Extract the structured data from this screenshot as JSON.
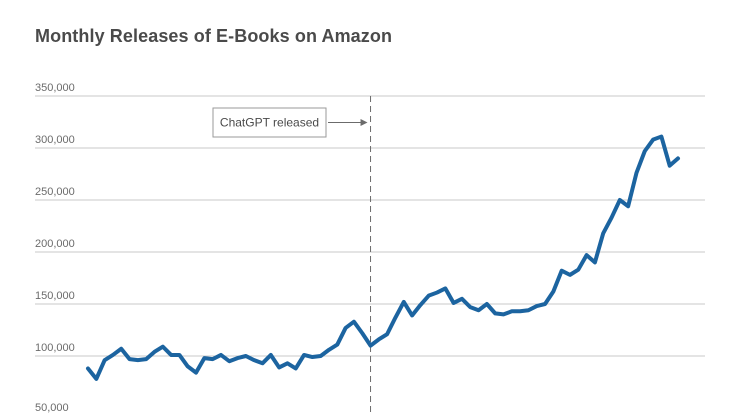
{
  "chart_data": {
    "type": "line",
    "title": "Monthly Releases of E-Books on Amazon",
    "xlabel": "",
    "ylabel": "",
    "ylim": [
      50000,
      350000
    ],
    "yticks": [
      350000,
      300000,
      250000,
      200000,
      150000,
      100000,
      50000
    ],
    "ytick_labels": [
      "350,000",
      "300,000",
      "250,000",
      "200,000",
      "150,000",
      "100,000",
      "50,000"
    ],
    "grid": true,
    "legend": "none",
    "color": "#1c64a0",
    "annotation": {
      "text": "ChatGPT released",
      "at_index": 34
    },
    "series": [
      {
        "values": [
          88000,
          78000,
          96000,
          101000,
          107000,
          97000,
          96000,
          97000,
          104000,
          109000,
          101000,
          101000,
          90000,
          84000,
          98000,
          97000,
          101000,
          95000,
          98000,
          100000,
          96000,
          93000,
          101000,
          89000,
          93000,
          88000,
          101000,
          99000,
          100000,
          106000,
          111000,
          127000,
          133000,
          122000,
          110000,
          116000,
          121000,
          137000,
          152000,
          139000,
          149000,
          158000,
          161000,
          165000,
          151000,
          155000,
          147000,
          144000,
          150000,
          141000,
          140000,
          143000,
          143000,
          144000,
          148000,
          150000,
          162000,
          182000,
          178000,
          183000,
          197000,
          190000,
          218000,
          233000,
          250000,
          244000,
          276000,
          297000,
          308000,
          311000,
          283000,
          290000
        ]
      }
    ]
  }
}
